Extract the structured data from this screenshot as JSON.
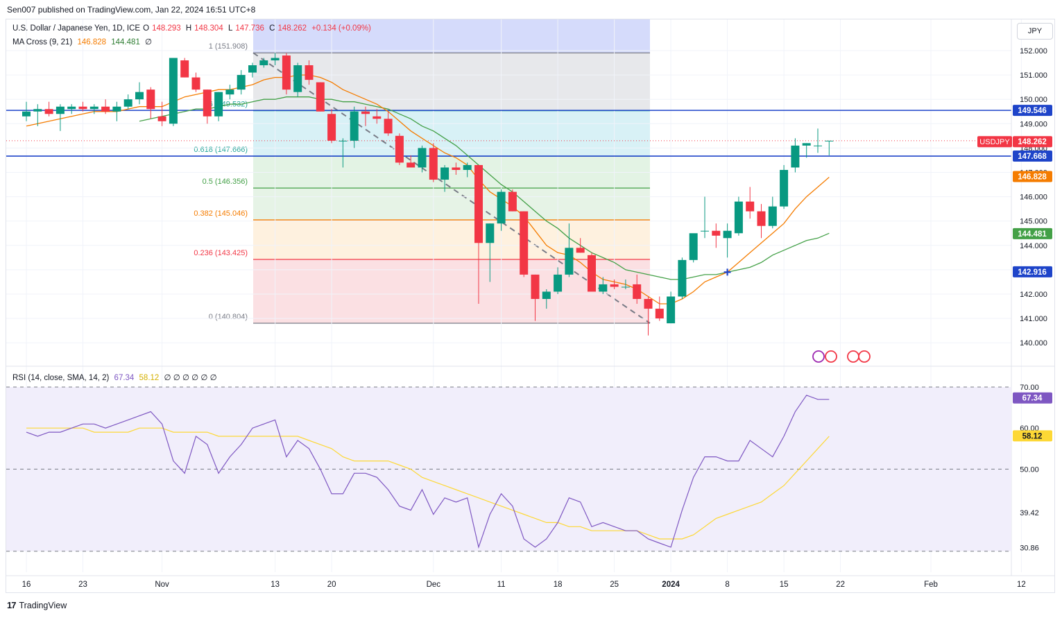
{
  "header": {
    "text": "Sen007 published on TradingView.com, Jan 22, 2024 16:51 UTC+8"
  },
  "legend": {
    "symbol": "U.S. Dollar / Japanese Yen, 1D, ICE",
    "o_label": "O",
    "o_value": "148.293",
    "h_label": "H",
    "h_value": "148.304",
    "l_label": "L",
    "l_value": "147.736",
    "c_label": "C",
    "c_value": "148.262",
    "change": "+0.134 (+0.09%)",
    "ma_label": "MA Cross (9, 21)",
    "ma_fast": "146.828",
    "ma_slow": "144.481",
    "ma_extra": "∅",
    "rsi_label": "RSI (14, close, SMA, 14, 2)",
    "rsi_value": "67.34",
    "rsi_sma": "58.12",
    "rsi_extra": "∅ ∅ ∅ ∅ ∅ ∅"
  },
  "currency_button": "JPY",
  "footer": {
    "brand": "TradingView"
  },
  "colors": {
    "up": "#089981",
    "down": "#f23645",
    "ma_fast": "#f57c00",
    "ma_slow": "#43a047",
    "rsi": "#7e57c2",
    "rsi_sma": "#fdd835",
    "hline": "#1e44c9"
  },
  "chart_data": {
    "type": "candlestick",
    "symbol": "USDJPY",
    "x_labels": [
      {
        "i": 0,
        "label": "16"
      },
      {
        "i": 5,
        "label": "23"
      },
      {
        "i": 12,
        "label": "Nov"
      },
      {
        "i": 22,
        "label": "13"
      },
      {
        "i": 27,
        "label": "20"
      },
      {
        "i": 36,
        "label": "Dec"
      },
      {
        "i": 42,
        "label": "11"
      },
      {
        "i": 47,
        "label": "18"
      },
      {
        "i": 52,
        "label": "25"
      },
      {
        "i": 57,
        "label": "2024"
      },
      {
        "i": 62,
        "label": "8"
      },
      {
        "i": 67,
        "label": "15"
      },
      {
        "i": 72,
        "label": "22"
      },
      {
        "i": 80,
        "label": "Feb"
      },
      {
        "i": 88,
        "label": "12"
      }
    ],
    "candles": [
      [
        149.3,
        149.9,
        149.1,
        149.5
      ],
      [
        149.5,
        149.8,
        148.9,
        149.6
      ],
      [
        149.6,
        149.9,
        149.3,
        149.4
      ],
      [
        149.4,
        149.8,
        148.7,
        149.7
      ],
      [
        149.6,
        149.8,
        149.4,
        149.7
      ],
      [
        149.7,
        149.9,
        149.5,
        149.6
      ],
      [
        149.6,
        149.8,
        149.4,
        149.7
      ],
      [
        149.7,
        150.0,
        149.4,
        149.5
      ],
      [
        149.5,
        149.9,
        149.1,
        149.7
      ],
      [
        149.7,
        150.2,
        149.6,
        150.0
      ],
      [
        150.0,
        150.7,
        149.8,
        150.3
      ],
      [
        150.4,
        150.5,
        149.2,
        149.6
      ],
      [
        149.3,
        149.9,
        148.9,
        149.1
      ],
      [
        149.0,
        151.7,
        148.9,
        151.7
      ],
      [
        151.6,
        151.7,
        150.9,
        150.9
      ],
      [
        150.9,
        151.1,
        150.3,
        150.4
      ],
      [
        150.4,
        150.4,
        149.0,
        149.3
      ],
      [
        149.3,
        150.3,
        149.1,
        150.3
      ],
      [
        150.2,
        150.6,
        150.0,
        150.4
      ],
      [
        150.4,
        151.2,
        150.2,
        151.0
      ],
      [
        151.1,
        151.5,
        150.9,
        151.4
      ],
      [
        151.4,
        151.7,
        151.3,
        151.6
      ],
      [
        151.6,
        151.9,
        151.4,
        151.7
      ],
      [
        151.8,
        151.9,
        150.2,
        150.4
      ],
      [
        150.3,
        151.5,
        150.1,
        151.4
      ],
      [
        151.4,
        151.6,
        150.6,
        150.8
      ],
      [
        150.7,
        150.7,
        149.5,
        149.5
      ],
      [
        149.4,
        149.6,
        148.2,
        148.3
      ],
      [
        148.3,
        148.4,
        147.2,
        148.3
      ],
      [
        148.3,
        149.7,
        148.0,
        149.5
      ],
      [
        149.5,
        149.7,
        148.9,
        149.4
      ],
      [
        149.3,
        149.6,
        149.0,
        149.2
      ],
      [
        149.2,
        149.5,
        148.5,
        148.6
      ],
      [
        148.5,
        148.6,
        147.3,
        147.4
      ],
      [
        147.4,
        147.7,
        147.2,
        147.2
      ],
      [
        147.2,
        148.1,
        147.0,
        148.0
      ],
      [
        148.0,
        148.2,
        146.6,
        146.7
      ],
      [
        146.7,
        147.3,
        146.2,
        147.2
      ],
      [
        147.2,
        147.4,
        146.9,
        147.1
      ],
      [
        147.1,
        147.4,
        146.8,
        147.3
      ],
      [
        147.3,
        147.3,
        141.6,
        144.1
      ],
      [
        144.1,
        144.9,
        142.5,
        144.9
      ],
      [
        144.9,
        146.3,
        144.6,
        146.2
      ],
      [
        146.2,
        146.3,
        145.4,
        145.4
      ],
      [
        145.4,
        145.4,
        142.7,
        142.8
      ],
      [
        142.8,
        142.8,
        140.9,
        141.8
      ],
      [
        141.8,
        142.2,
        141.4,
        142.1
      ],
      [
        142.1,
        143.1,
        142.0,
        142.8
      ],
      [
        142.8,
        144.9,
        142.7,
        143.9
      ],
      [
        143.9,
        144.3,
        143.7,
        143.7
      ],
      [
        143.6,
        143.7,
        142.1,
        142.1
      ],
      [
        142.1,
        142.7,
        142.0,
        142.4
      ],
      [
        142.4,
        142.6,
        142.2,
        142.3
      ],
      [
        142.3,
        142.6,
        142.2,
        142.3
      ],
      [
        142.4,
        142.8,
        141.6,
        141.8
      ],
      [
        141.8,
        141.9,
        140.3,
        141.4
      ],
      [
        141.4,
        141.9,
        140.9,
        141.0
      ],
      [
        140.8,
        142.1,
        140.8,
        141.9
      ],
      [
        141.9,
        143.5,
        141.8,
        143.4
      ],
      [
        143.4,
        144.4,
        143.3,
        144.5
      ],
      [
        144.6,
        146.0,
        144.3,
        144.6
      ],
      [
        144.6,
        144.9,
        143.9,
        144.4
      ],
      [
        144.3,
        144.9,
        143.5,
        144.6
      ],
      [
        144.5,
        146.0,
        144.4,
        145.8
      ],
      [
        145.8,
        146.4,
        145.1,
        145.4
      ],
      [
        145.4,
        145.7,
        144.3,
        144.8
      ],
      [
        144.8,
        146.0,
        144.7,
        145.6
      ],
      [
        145.6,
        147.3,
        145.5,
        147.1
      ],
      [
        147.2,
        148.4,
        147.0,
        148.1
      ],
      [
        148.1,
        148.2,
        147.6,
        148.2
      ],
      [
        148.1,
        148.8,
        147.8,
        148.1
      ],
      [
        148.3,
        148.3,
        147.7,
        148.3
      ]
    ],
    "ma_fast_values": [
      148.9,
      149.0,
      149.1,
      149.2,
      149.3,
      149.4,
      149.5,
      149.5,
      149.5,
      149.6,
      149.7,
      149.7,
      149.7,
      149.9,
      150.1,
      150.2,
      150.3,
      150.4,
      150.4,
      150.5,
      150.6,
      150.8,
      150.9,
      150.9,
      151.0,
      151.0,
      150.9,
      150.7,
      150.4,
      150.2,
      150.0,
      149.8,
      149.5,
      149.1,
      148.7,
      148.4,
      148.1,
      147.8,
      147.6,
      147.3,
      146.7,
      146.2,
      145.9,
      145.6,
      145.2,
      144.6,
      144.0,
      143.7,
      143.6,
      143.3,
      142.9,
      142.6,
      142.5,
      142.4,
      142.2,
      141.9,
      141.6,
      141.6,
      141.8,
      142.1,
      142.5,
      142.7,
      142.9,
      143.3,
      143.7,
      144.1,
      144.5,
      144.9,
      145.5,
      146.0,
      146.4,
      146.8
    ],
    "ma_slow_values": [
      null,
      null,
      null,
      null,
      null,
      null,
      null,
      null,
      null,
      null,
      149.1,
      149.2,
      149.3,
      149.4,
      149.5,
      149.6,
      149.6,
      149.7,
      149.8,
      149.8,
      149.9,
      150.0,
      150.0,
      150.1,
      150.1,
      150.1,
      150.0,
      150.0,
      149.9,
      149.9,
      149.8,
      149.7,
      149.6,
      149.4,
      149.2,
      148.9,
      148.7,
      148.4,
      148.1,
      147.7,
      147.3,
      146.9,
      146.5,
      146.2,
      145.8,
      145.4,
      145.0,
      144.7,
      144.3,
      144.0,
      143.7,
      143.5,
      143.3,
      143.0,
      142.9,
      142.8,
      142.7,
      142.6,
      142.6,
      142.7,
      142.8,
      142.8,
      142.9,
      143.0,
      143.1,
      143.3,
      143.6,
      143.8,
      144.0,
      144.2,
      144.3,
      144.5
    ],
    "rsi_values": [
      59,
      58,
      59,
      59,
      60,
      61,
      61,
      60,
      61,
      62,
      63,
      64,
      61,
      52,
      49,
      58,
      56,
      49,
      53,
      56,
      60,
      61,
      62,
      53,
      57,
      55,
      50,
      44,
      44,
      49,
      49,
      48,
      45,
      41,
      40,
      45,
      39,
      43,
      42,
      43,
      31,
      39,
      44,
      41,
      33,
      31,
      33,
      37,
      43,
      42,
      36,
      37,
      36,
      35,
      35,
      33,
      32,
      31,
      40,
      48,
      53,
      53,
      52,
      52,
      57,
      55,
      53,
      58,
      64,
      68,
      67,
      67
    ],
    "rsi_sma_values": [
      60,
      60,
      60,
      60,
      60,
      60,
      59,
      59,
      59,
      59,
      60,
      60,
      60,
      59,
      59,
      59,
      59,
      58,
      58,
      58,
      58,
      58,
      58,
      58,
      58,
      57,
      56,
      55,
      53,
      52,
      52,
      52,
      52,
      51,
      50,
      48,
      47,
      46,
      45,
      44,
      43,
      42,
      41,
      40,
      39,
      38,
      37,
      37,
      36,
      36,
      35,
      35,
      35,
      35,
      35,
      34,
      33,
      33,
      33,
      34,
      36,
      38,
      39,
      40,
      41,
      42,
      44,
      46,
      49,
      52,
      55,
      58
    ],
    "fib_levels": [
      {
        "ratio": "1",
        "price": 151.908,
        "label": "1 (151.908)",
        "color": "#787b86",
        "fill": "#d5dbfb"
      },
      {
        "ratio": "0.786",
        "price": 149.532,
        "label": "86 (149.532)",
        "color": "#26a69a",
        "fill": "#e4e5e9"
      },
      {
        "ratio": "0.618",
        "price": 147.666,
        "label": "0.618 (147.666)",
        "color": "#26a69a",
        "fill": "#d4f0f5"
      },
      {
        "ratio": "0.5",
        "price": 146.356,
        "label": "0.5 (146.356)",
        "color": "#43a047",
        "fill": "#e0f2e1"
      },
      {
        "ratio": "0.382",
        "price": 145.046,
        "label": "0.382 (145.046)",
        "color": "#f57c00",
        "fill": "#e3f2e3"
      },
      {
        "ratio": "0.236",
        "price": 143.425,
        "label": "0.236 (143.425)",
        "color": "#f23645",
        "fill": "#fef0dc"
      },
      {
        "ratio": "0",
        "price": 140.804,
        "label": "0 (140.804)",
        "color": "#787b86",
        "fill": "#fbdde0"
      }
    ],
    "fib_bottom_fill": "#fbdde0",
    "hlines": [
      149.546,
      147.668
    ],
    "price_axis": {
      "ylim": [
        139.9,
        152.2
      ],
      "ticks": [
        "152.000",
        "151.000",
        "150.000",
        "149.000",
        "148.000",
        "147.000",
        "146.000",
        "145.000",
        "144.000",
        "143.000",
        "142.000",
        "141.000",
        "140.000"
      ]
    },
    "price_badges": [
      {
        "value": "149.546",
        "color": "#1e44c9"
      },
      {
        "value": "148.262",
        "color": "#f23645",
        "tag": "USDJPY"
      },
      {
        "value": "147.668",
        "color": "#1e44c9"
      },
      {
        "value": "146.828",
        "color": "#f57c00"
      },
      {
        "value": "144.481",
        "color": "#43a047"
      },
      {
        "value": "142.916",
        "color": "#1e44c9"
      }
    ],
    "rsi_axis": {
      "ylim": [
        27,
        73
      ],
      "ticks": [
        "70.00",
        "60.00",
        "50.00",
        "39.42",
        "30.86"
      ]
    },
    "rsi_badges": [
      {
        "value": "67.34",
        "color": "#7e57c2"
      },
      {
        "value": "58.12",
        "color": "#fdd835",
        "text_color": "#131722"
      }
    ]
  }
}
